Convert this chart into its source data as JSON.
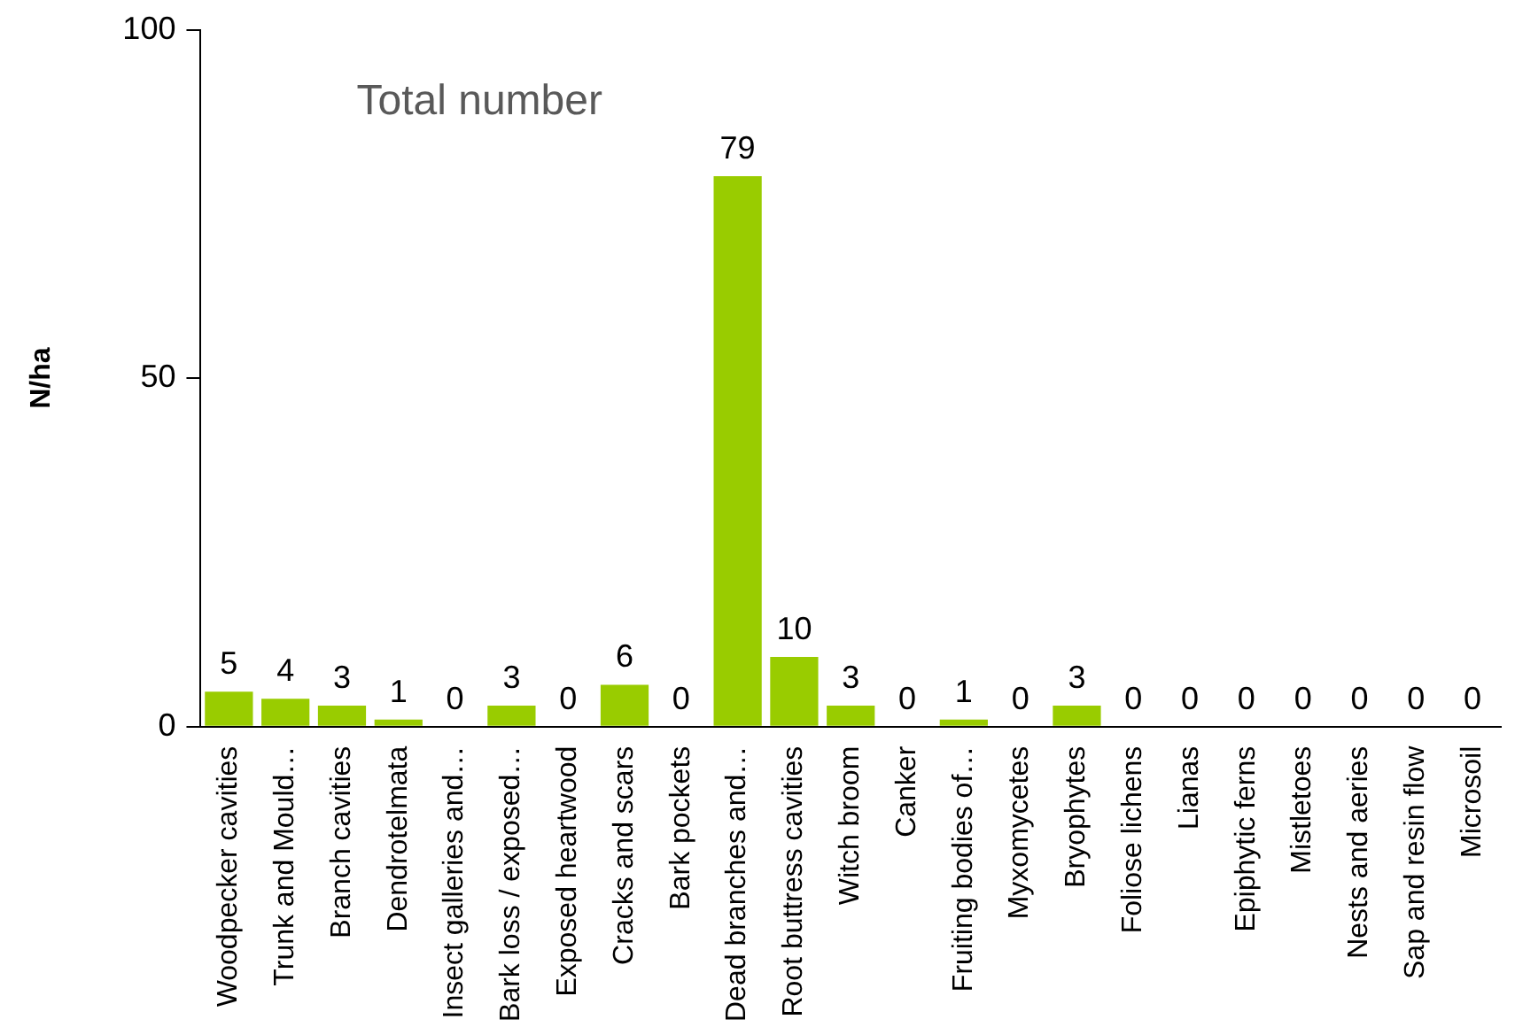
{
  "chart_data": {
    "type": "bar",
    "ylabel": "N/ha",
    "annotations": [
      "Total number"
    ],
    "categories": [
      "Woodpecker cavities",
      "Trunk and Mould…",
      "Branch cavities",
      "Dendrotelmata",
      "Insect galleries and…",
      "Bark loss / exposed…",
      "Exposed heartwood",
      "Cracks and scars",
      "Bark pockets",
      "Dead branches and…",
      "Root buttress cavities",
      "Witch broom",
      "Canker",
      "Fruiting bodies of…",
      "Myxomycetes",
      "Bryophytes",
      "Foliose lichens",
      "Lianas",
      "Epiphytic ferns",
      "Mistletoes",
      "Nests and aeries",
      "Sap and resin flow",
      "Microsoil"
    ],
    "values": [
      5,
      4,
      3,
      1,
      0,
      3,
      0,
      6,
      0,
      79,
      10,
      3,
      0,
      1,
      0,
      3,
      0,
      0,
      0,
      0,
      0,
      0,
      0
    ],
    "color": "#99cc00",
    "ylim": [
      0,
      100
    ],
    "yticks": [
      0,
      50,
      100
    ],
    "grid": false,
    "legend": false,
    "data_labels": true
  }
}
